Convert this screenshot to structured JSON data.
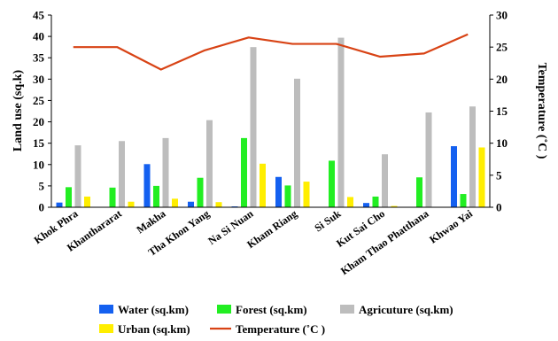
{
  "chart_data": {
    "type": "bar",
    "categories": [
      "Khok Phra",
      "Khanthararat",
      "Makha",
      "Tha Khon Yang",
      "Na Si Nuan",
      "Kham Riang",
      "Si Suk",
      "Kut Sai Cho",
      "Kham Thao Phatthana",
      "Khwao Yai"
    ],
    "series": [
      {
        "name": "Water (sq.km)",
        "color": "#1460f0",
        "values": [
          1.1,
          0,
          10.1,
          1.3,
          0.2,
          7.1,
          0,
          1.0,
          0,
          14.3
        ]
      },
      {
        "name": "Forest (sq.km)",
        "color": "#22ee22",
        "values": [
          4.7,
          4.6,
          5.0,
          6.9,
          16.2,
          5.1,
          10.9,
          2.5,
          7.0,
          3.1
        ]
      },
      {
        "name": "Agricuture (sq.km)",
        "color": "#bdbdbd",
        "values": [
          14.5,
          15.5,
          16.2,
          20.4,
          37.5,
          30.1,
          39.7,
          12.4,
          22.2,
          23.6
        ]
      },
      {
        "name": "Urban (sq.km)",
        "color": "#ffee00",
        "values": [
          2.5,
          1.3,
          2.0,
          1.2,
          10.2,
          6.0,
          2.4,
          0.3,
          0,
          14.0
        ]
      }
    ],
    "line_series": {
      "name": "Temperature (˚C )",
      "color": "#d84315",
      "values": [
        25.0,
        25.0,
        21.5,
        24.5,
        26.5,
        25.5,
        25.5,
        23.5,
        24.0,
        27.0
      ]
    },
    "ylabel": "Land  use (sq.k)",
    "ylabel_right": "Temperature (˚C )",
    "ylim": [
      0,
      45
    ],
    "yticks": [
      0,
      5,
      10,
      15,
      20,
      25,
      30,
      35,
      40,
      45
    ],
    "ylim_right": [
      0,
      30
    ],
    "yticks_right": [
      0,
      5,
      10,
      15,
      20,
      25,
      30
    ],
    "legend_position": "bottom"
  }
}
